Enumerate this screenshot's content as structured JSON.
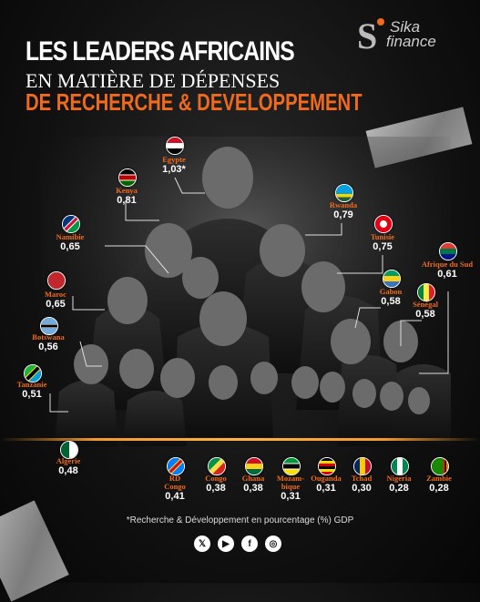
{
  "title": {
    "line1": "LES LEADERS AFRICAINS",
    "line2": "EN MATIÈRE DE DÉPENSES",
    "line3": "DE RECHERCHE & DEVELOPPEMENT"
  },
  "logo": {
    "line1": "Sika",
    "line2": "finance",
    "mark": "S"
  },
  "footnote": "*Recherche & Développement en pourcentage (%) GDP",
  "social": [
    "x-icon",
    "youtube-icon",
    "facebook-icon",
    "instagram-icon"
  ],
  "chart_data": {
    "type": "table",
    "title": "LES LEADERS AFRICAINS EN MATIÈRE DE DÉPENSES DE RECHERCHE & DEVELOPPEMENT",
    "note": "*Recherche & Développement en pourcentage (%) GDP",
    "series": [
      {
        "country": "Egypte",
        "label": "1,03*",
        "value": 1.03
      },
      {
        "country": "Kenya",
        "label": "0,81",
        "value": 0.81
      },
      {
        "country": "Rwanda",
        "label": "0,79",
        "value": 0.79
      },
      {
        "country": "Tunisie",
        "label": "0,75",
        "value": 0.75
      },
      {
        "country": "Namibie",
        "label": "0,65",
        "value": 0.65
      },
      {
        "country": "Maroc",
        "label": "0,65",
        "value": 0.65
      },
      {
        "country": "Afrique du Sud",
        "label": "0,61",
        "value": 0.61
      },
      {
        "country": "Gabon",
        "label": "0,58",
        "value": 0.58
      },
      {
        "country": "Sénégal",
        "label": "0,58",
        "value": 0.58
      },
      {
        "country": "Botswana",
        "label": "0,56",
        "value": 0.56
      },
      {
        "country": "Tanzanie",
        "label": "0,51",
        "value": 0.51
      },
      {
        "country": "Algérie",
        "label": "0,48",
        "value": 0.48
      },
      {
        "country": "RD Congo",
        "label": "0,41",
        "value": 0.41
      },
      {
        "country": "Congo",
        "label": "0,38",
        "value": 0.38
      },
      {
        "country": "Ghana",
        "label": "0,38",
        "value": 0.38
      },
      {
        "country": "Mozam-bique",
        "label": "0,31",
        "value": 0.31
      },
      {
        "country": "Ouganda",
        "label": "0,31",
        "value": 0.31
      },
      {
        "country": "Tchad",
        "label": "0,30",
        "value": 0.3
      },
      {
        "country": "Nigeria",
        "label": "0,28",
        "value": 0.28
      },
      {
        "country": "Zambie",
        "label": "0,28",
        "value": 0.28
      }
    ]
  },
  "colors": {
    "accent": "#f06a1e",
    "background": "#111111",
    "line": "#dddddd"
  }
}
